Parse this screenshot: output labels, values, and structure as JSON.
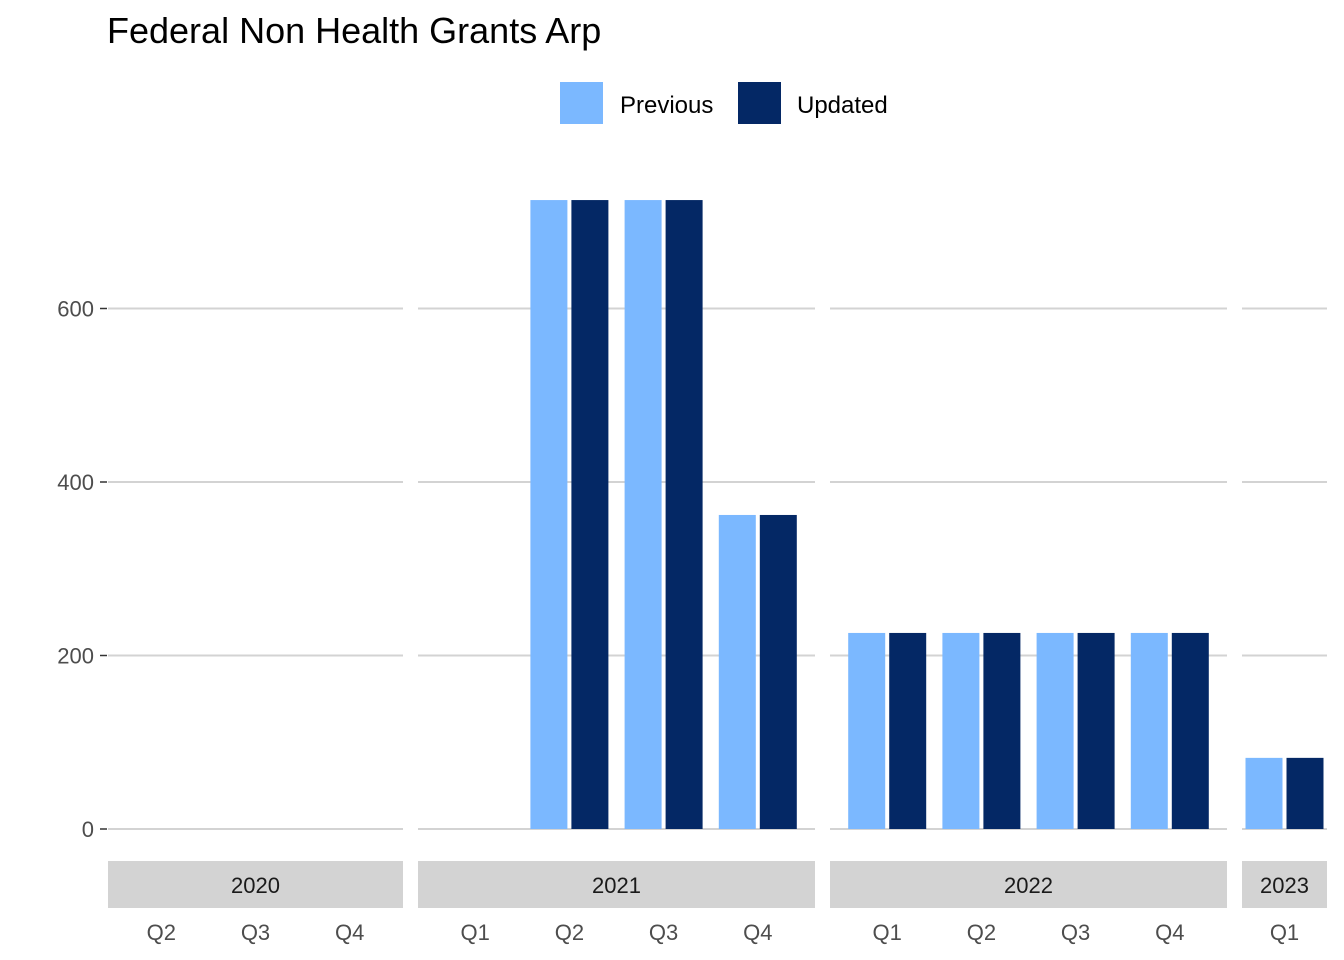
{
  "chart_data": {
    "type": "bar",
    "title": "Federal Non Health Grants Arp",
    "xlabel": "",
    "ylabel": "",
    "ylim": [
      0,
      800
    ],
    "y_ticks": [
      0,
      200,
      400,
      600
    ],
    "grid": "horizontal major",
    "legend_position": "top",
    "series": [
      {
        "name": "Previous",
        "color": "#7bb8ff"
      },
      {
        "name": "Updated",
        "color": "#042865"
      }
    ],
    "panels": [
      {
        "year": "2020",
        "categories": [
          "Q2",
          "Q3",
          "Q4"
        ],
        "values": {
          "Previous": [
            0,
            0,
            0
          ],
          "Updated": [
            0,
            0,
            0
          ]
        }
      },
      {
        "year": "2021",
        "categories": [
          "Q1",
          "Q2",
          "Q3",
          "Q4"
        ],
        "values": {
          "Previous": [
            0,
            725,
            725,
            362
          ],
          "Updated": [
            0,
            725,
            725,
            362
          ]
        }
      },
      {
        "year": "2022",
        "categories": [
          "Q1",
          "Q2",
          "Q3",
          "Q4"
        ],
        "values": {
          "Previous": [
            226,
            226,
            226,
            226
          ],
          "Updated": [
            226,
            226,
            226,
            226
          ]
        }
      },
      {
        "year": "2023",
        "categories": [
          "Q1"
        ],
        "values": {
          "Previous": [
            82
          ],
          "Updated": [
            82
          ]
        }
      }
    ]
  },
  "colors": {
    "grid": "#d3d3d3",
    "strip": "#d3d3d3",
    "axis_text": "#4d4d4d"
  }
}
